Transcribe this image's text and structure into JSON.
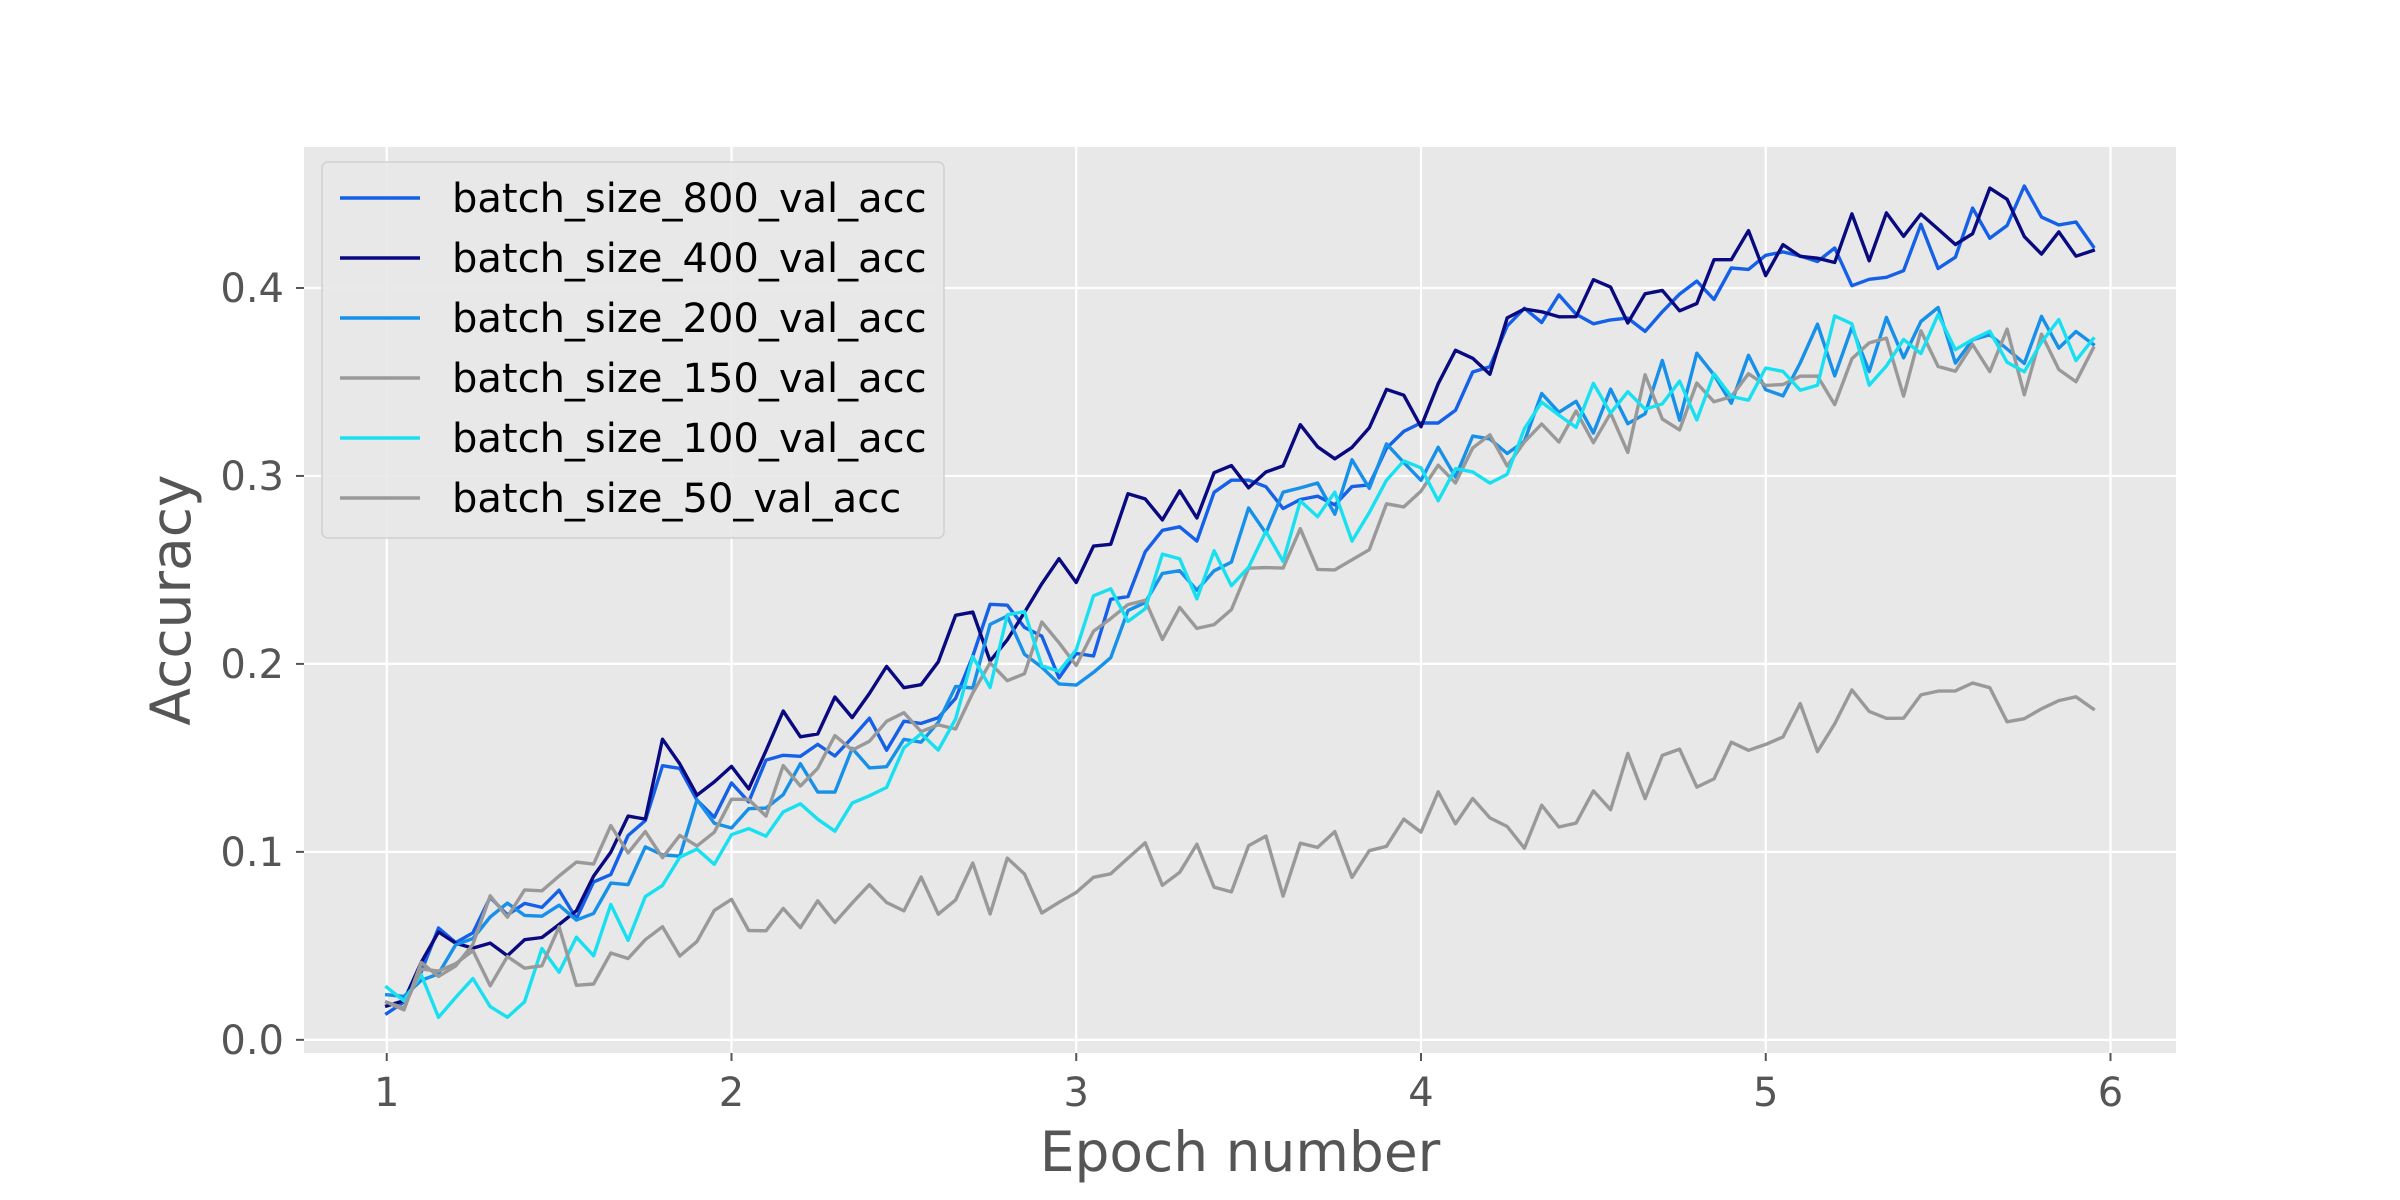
{
  "chart_data": {
    "type": "line",
    "title": "",
    "xlabel": "Epoch number",
    "ylabel": "Accuracy",
    "xlim": [
      0.76,
      6.19
    ],
    "ylim": [
      -0.007,
      0.475
    ],
    "xticks": [
      1,
      2,
      3,
      4,
      5,
      6
    ],
    "yticks": [
      0.0,
      0.1,
      0.2,
      0.3,
      0.4
    ],
    "xtick_labels": [
      "1",
      "2",
      "3",
      "4",
      "5",
      "6"
    ],
    "ytick_labels": [
      "0.0",
      "0.1",
      "0.2",
      "0.3",
      "0.4"
    ],
    "grid": true,
    "legend_position": "upper-left",
    "background": "#e8e8e8",
    "series": [
      {
        "name": "batch_size_800_val_acc",
        "color": "#1560e8",
        "knots": [
          [
            1.0,
            0.014
          ],
          [
            1.2,
            0.065
          ],
          [
            1.4,
            0.072
          ],
          [
            1.6,
            0.078
          ],
          [
            1.8,
            0.136
          ],
          [
            2.0,
            0.128
          ],
          [
            2.2,
            0.152
          ],
          [
            2.4,
            0.165
          ],
          [
            2.6,
            0.18
          ],
          [
            2.8,
            0.24
          ],
          [
            3.0,
            0.195
          ],
          [
            3.2,
            0.258
          ],
          [
            3.4,
            0.28
          ],
          [
            3.6,
            0.295
          ],
          [
            3.8,
            0.282
          ],
          [
            4.0,
            0.33
          ],
          [
            4.2,
            0.36
          ],
          [
            4.4,
            0.392
          ],
          [
            4.6,
            0.38
          ],
          [
            4.8,
            0.395
          ],
          [
            5.0,
            0.413
          ],
          [
            5.2,
            0.405
          ],
          [
            5.4,
            0.42
          ],
          [
            5.6,
            0.428
          ],
          [
            5.75,
            0.453
          ],
          [
            5.95,
            0.422
          ]
        ],
        "noise": 0.018,
        "seed": 11
      },
      {
        "name": "batch_size_400_val_acc",
        "color": "#0a0a80",
        "knots": [
          [
            1.0,
            0.018
          ],
          [
            1.2,
            0.06
          ],
          [
            1.4,
            0.06
          ],
          [
            1.6,
            0.075
          ],
          [
            1.8,
            0.148
          ],
          [
            2.0,
            0.14
          ],
          [
            2.2,
            0.17
          ],
          [
            2.4,
            0.19
          ],
          [
            2.6,
            0.21
          ],
          [
            2.8,
            0.22
          ],
          [
            3.0,
            0.26
          ],
          [
            3.2,
            0.282
          ],
          [
            3.4,
            0.3
          ],
          [
            3.6,
            0.32
          ],
          [
            3.8,
            0.318
          ],
          [
            4.0,
            0.345
          ],
          [
            4.2,
            0.37
          ],
          [
            4.4,
            0.385
          ],
          [
            4.6,
            0.395
          ],
          [
            4.8,
            0.405
          ],
          [
            5.0,
            0.418
          ],
          [
            5.2,
            0.425
          ],
          [
            5.4,
            0.432
          ],
          [
            5.6,
            0.432
          ],
          [
            5.75,
            0.438
          ],
          [
            5.95,
            0.42
          ]
        ],
        "noise": 0.02,
        "seed": 23
      },
      {
        "name": "batch_size_200_val_acc",
        "color": "#1690e8",
        "knots": [
          [
            1.0,
            0.024
          ],
          [
            1.2,
            0.058
          ],
          [
            1.4,
            0.068
          ],
          [
            1.6,
            0.08
          ],
          [
            1.8,
            0.115
          ],
          [
            2.0,
            0.125
          ],
          [
            2.2,
            0.135
          ],
          [
            2.4,
            0.15
          ],
          [
            2.6,
            0.18
          ],
          [
            2.8,
            0.215
          ],
          [
            3.0,
            0.2
          ],
          [
            3.2,
            0.24
          ],
          [
            3.4,
            0.255
          ],
          [
            3.6,
            0.28
          ],
          [
            3.8,
            0.29
          ],
          [
            4.0,
            0.305
          ],
          [
            4.2,
            0.32
          ],
          [
            4.4,
            0.335
          ],
          [
            4.6,
            0.34
          ],
          [
            4.8,
            0.352
          ],
          [
            5.0,
            0.356
          ],
          [
            5.2,
            0.368
          ],
          [
            5.4,
            0.374
          ],
          [
            5.6,
            0.37
          ],
          [
            5.75,
            0.372
          ],
          [
            5.95,
            0.37
          ]
        ],
        "noise": 0.022,
        "seed": 37
      },
      {
        "name": "batch_size_150_val_acc",
        "color": "#999999",
        "knots": [
          [
            1.0,
            0.02
          ],
          [
            1.2,
            0.045
          ],
          [
            1.4,
            0.075
          ],
          [
            1.6,
            0.09
          ],
          [
            1.8,
            0.105
          ],
          [
            2.0,
            0.12
          ],
          [
            2.2,
            0.14
          ],
          [
            2.4,
            0.16
          ],
          [
            2.6,
            0.18
          ],
          [
            2.8,
            0.2
          ],
          [
            3.0,
            0.205
          ],
          [
            3.2,
            0.22
          ],
          [
            3.4,
            0.235
          ],
          [
            3.6,
            0.25
          ],
          [
            3.8,
            0.255
          ],
          [
            4.0,
            0.285
          ],
          [
            4.2,
            0.305
          ],
          [
            4.4,
            0.32
          ],
          [
            4.6,
            0.33
          ],
          [
            4.8,
            0.342
          ],
          [
            5.0,
            0.348
          ],
          [
            5.2,
            0.355
          ],
          [
            5.4,
            0.362
          ],
          [
            5.6,
            0.362
          ],
          [
            5.75,
            0.363
          ],
          [
            5.95,
            0.368
          ]
        ],
        "noise": 0.022,
        "seed": 51
      },
      {
        "name": "batch_size_100_val_acc",
        "color": "#19e0f0",
        "knots": [
          [
            1.0,
            0.028
          ],
          [
            1.2,
            0.03
          ],
          [
            1.4,
            0.028
          ],
          [
            1.6,
            0.05
          ],
          [
            1.8,
            0.075
          ],
          [
            2.0,
            0.12
          ],
          [
            2.2,
            0.12
          ],
          [
            2.4,
            0.14
          ],
          [
            2.6,
            0.17
          ],
          [
            2.8,
            0.21
          ],
          [
            3.0,
            0.21
          ],
          [
            3.2,
            0.245
          ],
          [
            3.4,
            0.245
          ],
          [
            3.6,
            0.27
          ],
          [
            3.8,
            0.28
          ],
          [
            4.0,
            0.295
          ],
          [
            4.2,
            0.31
          ],
          [
            4.4,
            0.33
          ],
          [
            4.6,
            0.342
          ],
          [
            4.8,
            0.35
          ],
          [
            5.0,
            0.352
          ],
          [
            5.2,
            0.366
          ],
          [
            5.4,
            0.37
          ],
          [
            5.6,
            0.368
          ],
          [
            5.75,
            0.366
          ],
          [
            5.95,
            0.373
          ]
        ],
        "noise": 0.022,
        "seed": 67
      },
      {
        "name": "batch_size_50_val_acc",
        "color": "#999999",
        "knots": [
          [
            1.0,
            0.02
          ],
          [
            1.2,
            0.035
          ],
          [
            1.4,
            0.045
          ],
          [
            1.6,
            0.045
          ],
          [
            1.8,
            0.055
          ],
          [
            2.0,
            0.06
          ],
          [
            2.2,
            0.062
          ],
          [
            2.4,
            0.08
          ],
          [
            2.6,
            0.078
          ],
          [
            2.8,
            0.085
          ],
          [
            3.0,
            0.075
          ],
          [
            3.2,
            0.095
          ],
          [
            3.4,
            0.092
          ],
          [
            3.6,
            0.09
          ],
          [
            3.8,
            0.1
          ],
          [
            4.0,
            0.12
          ],
          [
            4.2,
            0.115
          ],
          [
            4.4,
            0.125
          ],
          [
            4.6,
            0.138
          ],
          [
            4.8,
            0.148
          ],
          [
            5.0,
            0.16
          ],
          [
            5.2,
            0.172
          ],
          [
            5.4,
            0.178
          ],
          [
            5.6,
            0.182
          ],
          [
            5.75,
            0.18
          ],
          [
            5.95,
            0.176
          ]
        ],
        "noise": 0.02,
        "seed": 89
      }
    ]
  }
}
